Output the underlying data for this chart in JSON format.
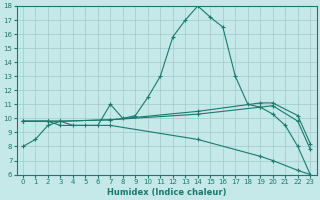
{
  "xlabel": "Humidex (Indice chaleur)",
  "xlim": [
    -0.5,
    23.5
  ],
  "ylim": [
    6,
    18
  ],
  "yticks": [
    6,
    7,
    8,
    9,
    10,
    11,
    12,
    13,
    14,
    15,
    16,
    17,
    18
  ],
  "xticks": [
    0,
    1,
    2,
    3,
    4,
    5,
    6,
    7,
    8,
    9,
    10,
    11,
    12,
    13,
    14,
    15,
    16,
    17,
    18,
    19,
    20,
    21,
    22,
    23
  ],
  "bg_color": "#c5e8e8",
  "line_color": "#1a7a6e",
  "grid_color": "#a0cbcb",
  "lines": [
    {
      "x": [
        0,
        1,
        2,
        3,
        4,
        5,
        6,
        7,
        8,
        9,
        10,
        11,
        12,
        13,
        14,
        15,
        16,
        17,
        18,
        19,
        20,
        21,
        22,
        23
      ],
      "y": [
        8.0,
        8.5,
        9.5,
        9.8,
        9.5,
        9.5,
        9.5,
        11.0,
        10.0,
        10.2,
        11.5,
        13.0,
        15.8,
        17.0,
        18.0,
        17.2,
        16.5,
        13.0,
        11.0,
        10.8,
        10.3,
        9.5,
        8.0,
        6.0
      ]
    },
    {
      "x": [
        0,
        2,
        3,
        7,
        14,
        19,
        20,
        22,
        23
      ],
      "y": [
        9.8,
        9.8,
        9.8,
        9.9,
        10.5,
        11.1,
        11.1,
        10.2,
        8.2
      ]
    },
    {
      "x": [
        0,
        2,
        3,
        7,
        14,
        19,
        20,
        22,
        23
      ],
      "y": [
        9.8,
        9.8,
        9.8,
        9.9,
        10.3,
        10.8,
        10.9,
        9.8,
        7.8
      ]
    },
    {
      "x": [
        0,
        2,
        3,
        7,
        14,
        19,
        20,
        22,
        23
      ],
      "y": [
        9.8,
        9.8,
        9.5,
        9.5,
        8.5,
        7.3,
        7.0,
        6.3,
        6.0
      ]
    }
  ]
}
